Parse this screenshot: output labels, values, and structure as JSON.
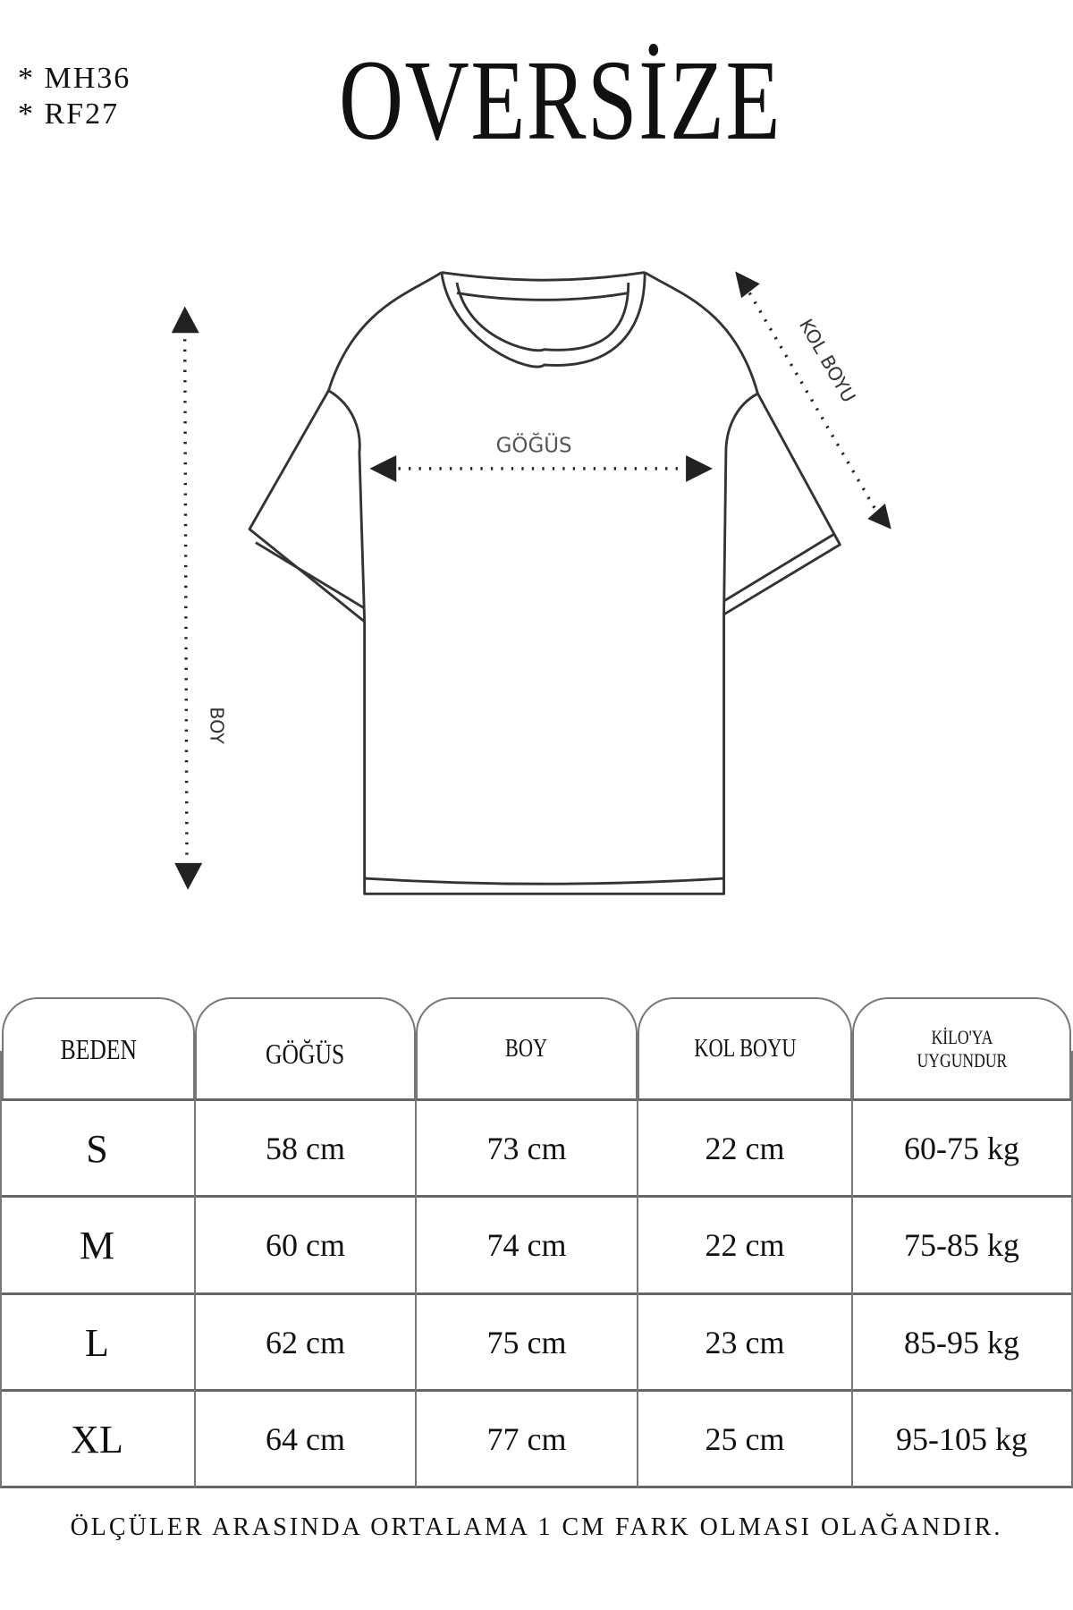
{
  "header": {
    "codes": [
      "* MH36",
      "* RF27"
    ],
    "title": "OVERSİZE"
  },
  "diagram": {
    "chest_label": "GÖĞÜS",
    "sleeve_label": "KOL BOYU",
    "length_label": "BOY"
  },
  "table": {
    "columns": [
      "BEDEN",
      "GÖĞÜS",
      "BOY",
      "KOL BOYU",
      "KİLO'YA UYGUNDUR"
    ],
    "rows": [
      [
        "S",
        "58 cm",
        "73 cm",
        "22  cm",
        "60-75 kg"
      ],
      [
        "M",
        "60 cm",
        "74 cm",
        "22 cm",
        "75-85 kg"
      ],
      [
        "L",
        "62 cm",
        "75 cm",
        "23 cm",
        "85-95 kg"
      ],
      [
        "XL",
        "64 cm",
        "77 cm",
        "25 cm",
        "95-105 kg"
      ]
    ]
  },
  "footer": "ÖLÇÜLER ARASINDA ORTALAMA 1 CM FARK OLMASI OLAĞANDIR."
}
